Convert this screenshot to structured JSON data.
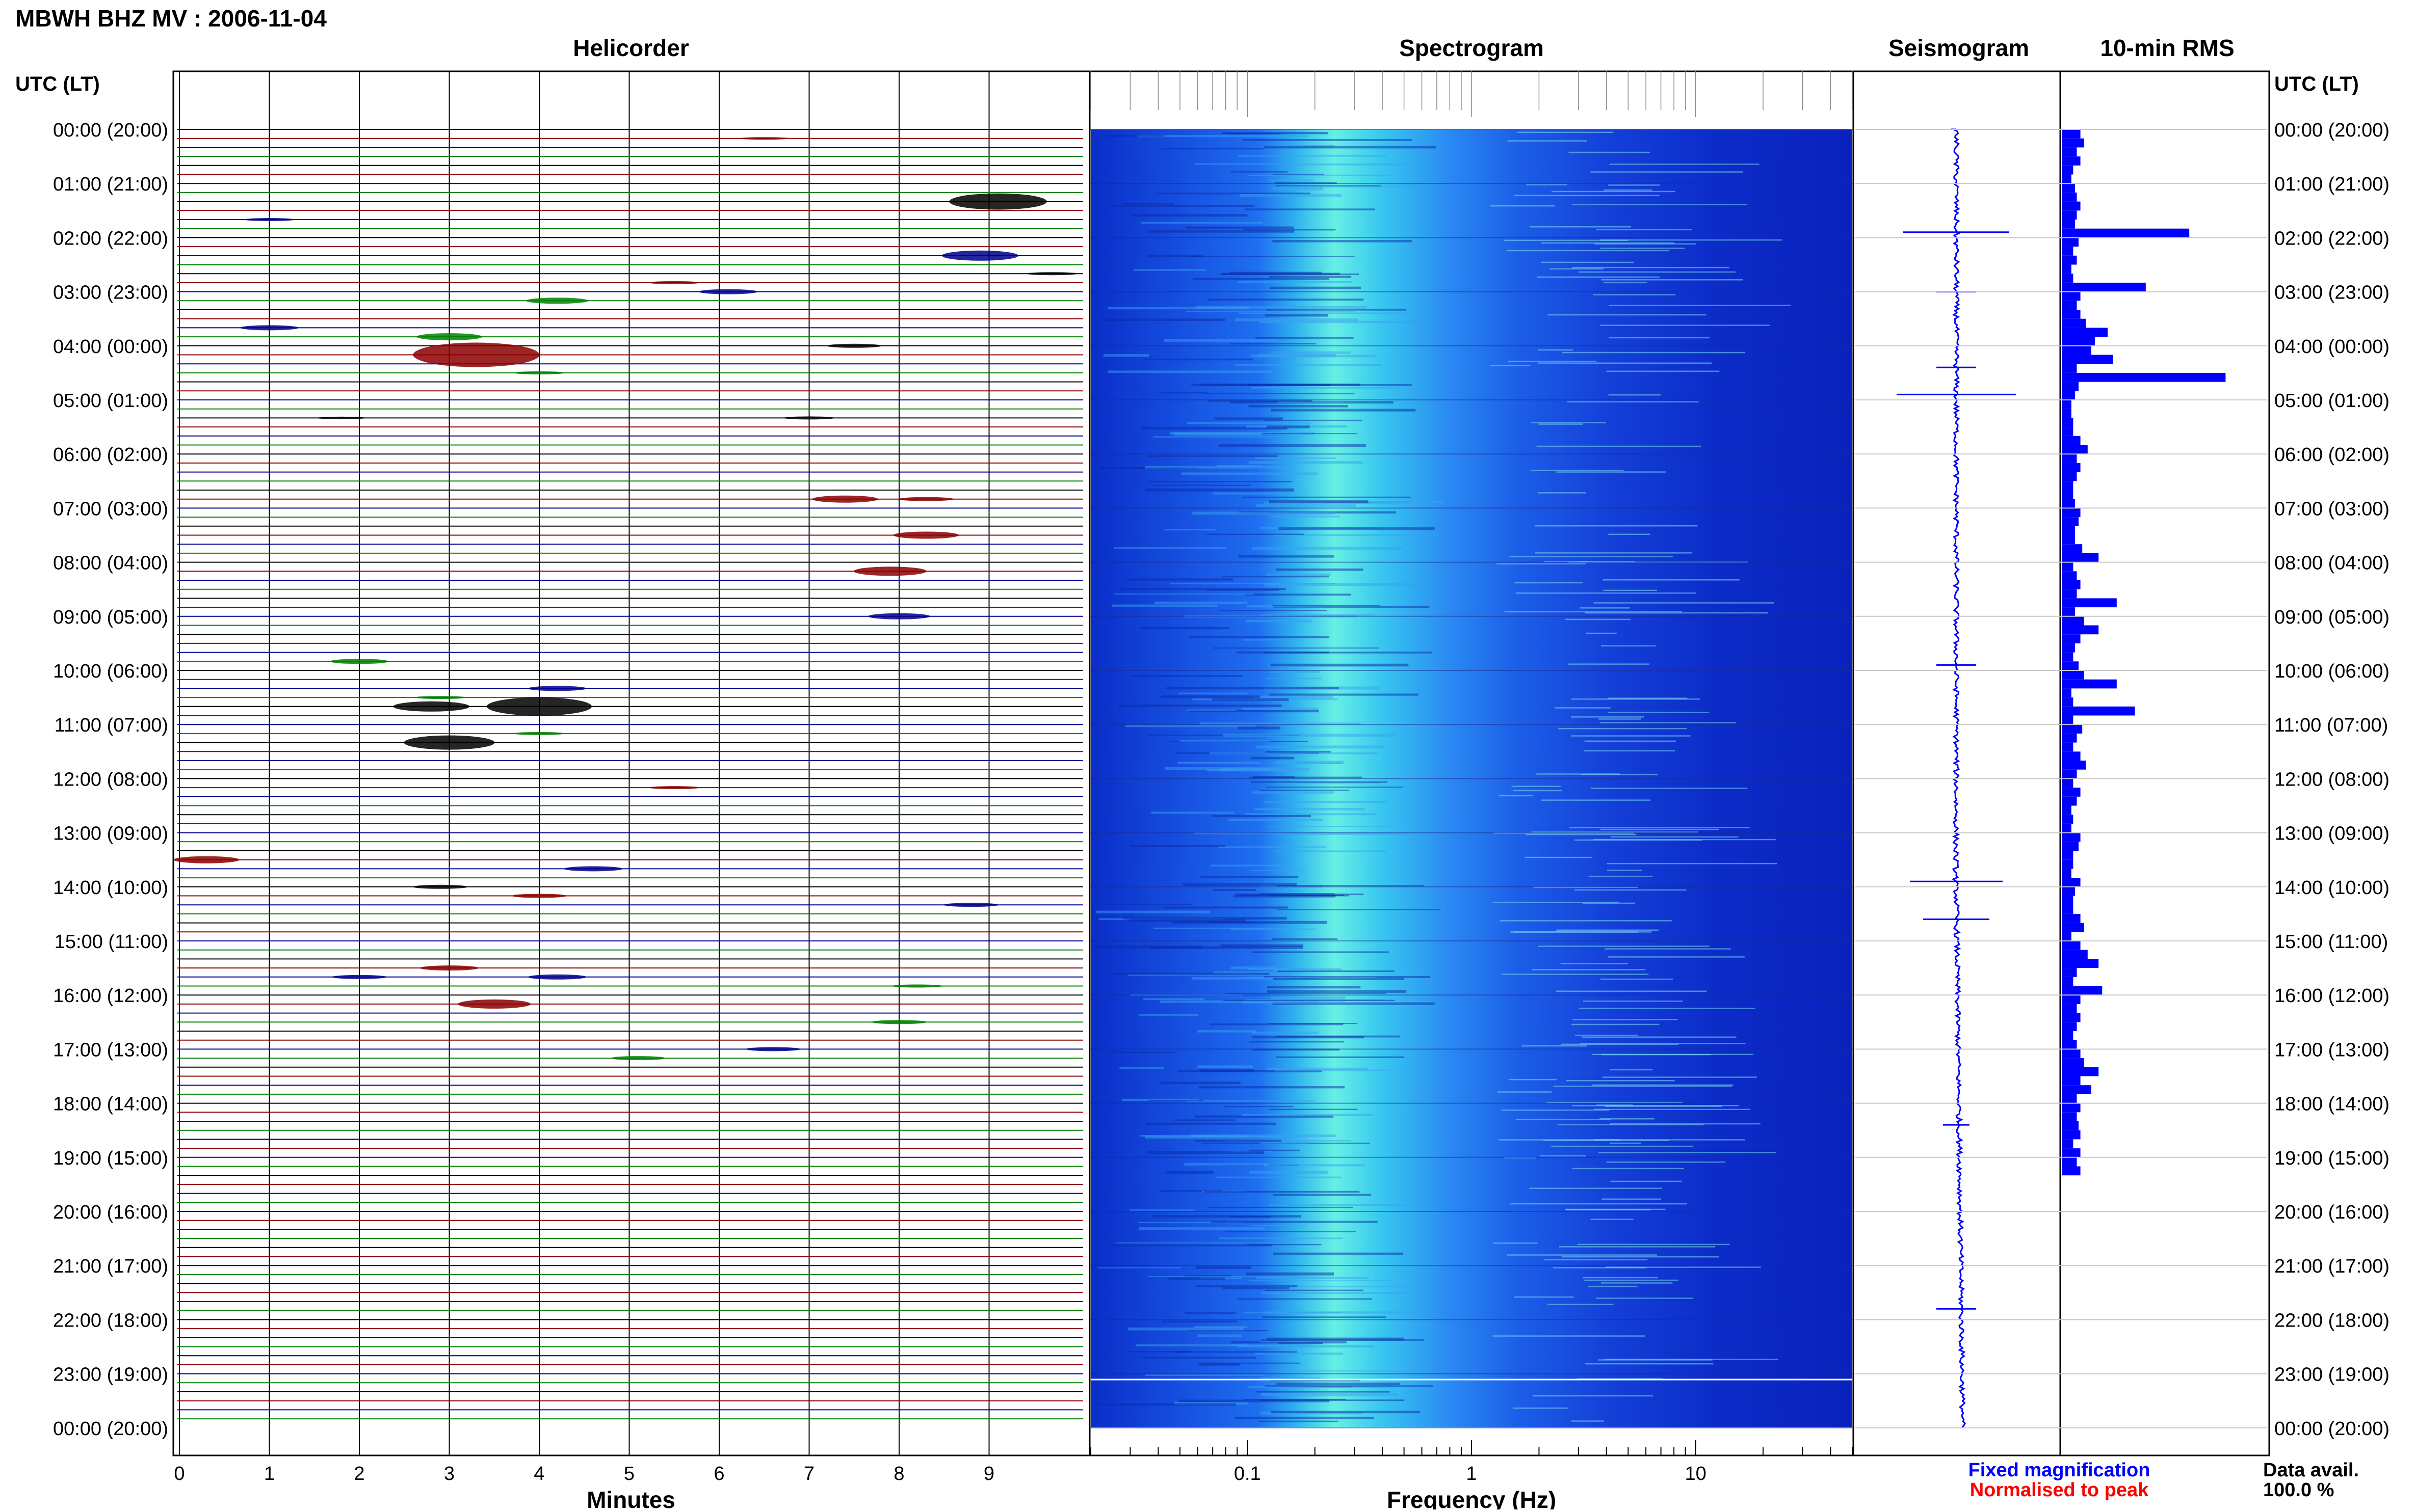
{
  "header": {
    "title": "MBWH BHZ MV : 2006-11-04",
    "utc_label_left": "UTC (LT)",
    "utc_label_right": "UTC (LT)"
  },
  "panels": {
    "helicorder": "Helicorder",
    "spectrogram": "Spectrogram",
    "seismogram": "Seismogram",
    "rms": "10-min RMS"
  },
  "axes": {
    "minutes_label": "Minutes",
    "frequency_label": "Frequency (Hz)",
    "minute_ticks": [
      "0",
      "1",
      "2",
      "3",
      "4",
      "5",
      "6",
      "7",
      "8",
      "9"
    ],
    "freq_ticks": [
      {
        "v": 0.1,
        "t": "0.1"
      },
      {
        "v": 1,
        "t": "1"
      },
      {
        "v": 10,
        "t": "10"
      }
    ],
    "freq_range": [
      0.02,
      50
    ]
  },
  "time_labels": [
    "00:00 (20:00)",
    "01:00 (21:00)",
    "02:00 (22:00)",
    "03:00 (23:00)",
    "04:00 (00:00)",
    "05:00 (01:00)",
    "06:00 (02:00)",
    "07:00 (03:00)",
    "08:00 (04:00)",
    "09:00 (05:00)",
    "10:00 (06:00)",
    "11:00 (07:00)",
    "12:00 (08:00)",
    "13:00 (09:00)",
    "14:00 (10:00)",
    "15:00 (11:00)",
    "16:00 (12:00)",
    "17:00 (13:00)",
    "18:00 (14:00)",
    "19:00 (15:00)",
    "20:00 (16:00)",
    "21:00 (17:00)",
    "22:00 (18:00)",
    "23:00 (19:00)",
    "00:00 (20:00)"
  ],
  "legend": {
    "fixed": "Fixed magnification",
    "normalised": "Normalised to peak",
    "fixed_color": "#0000ff",
    "normalised_color": "#ff0000"
  },
  "data_avail": {
    "label": "Data avail.",
    "value": "100.0 %"
  },
  "colors": {
    "trace": [
      "#000000",
      "#8b0000",
      "#00008b",
      "#008000"
    ],
    "rms": "#0000ff"
  },
  "chart_data": {
    "type": "heatmap",
    "helicorder_events": [
      {
        "row": 1,
        "minute": 6.5,
        "amp": 0.25
      },
      {
        "row": 8,
        "minute": 9.1,
        "amp": 1.6
      },
      {
        "row": 10,
        "minute": 1.0,
        "amp": 0.3
      },
      {
        "row": 14,
        "minute": 8.9,
        "amp": 1.0
      },
      {
        "row": 16,
        "minute": 9.7,
        "amp": 0.3
      },
      {
        "row": 17,
        "minute": 5.5,
        "amp": 0.3
      },
      {
        "row": 18,
        "minute": 6.1,
        "amp": 0.5
      },
      {
        "row": 19,
        "minute": 4.2,
        "amp": 0.6
      },
      {
        "row": 22,
        "minute": 1.0,
        "amp": 0.5
      },
      {
        "row": 23,
        "minute": 3.0,
        "amp": 0.7
      },
      {
        "row": 24,
        "minute": 7.5,
        "amp": 0.4
      },
      {
        "row": 25,
        "minute": 3.3,
        "amp": 2.4
      },
      {
        "row": 27,
        "minute": 4.0,
        "amp": 0.3
      },
      {
        "row": 32,
        "minute": 1.8,
        "amp": 0.25
      },
      {
        "row": 32,
        "minute": 7.0,
        "amp": 0.3
      },
      {
        "row": 41,
        "minute": 7.4,
        "amp": 0.7
      },
      {
        "row": 41,
        "minute": 8.3,
        "amp": 0.4
      },
      {
        "row": 45,
        "minute": 8.3,
        "amp": 0.7
      },
      {
        "row": 49,
        "minute": 7.9,
        "amp": 0.9
      },
      {
        "row": 54,
        "minute": 8.0,
        "amp": 0.6
      },
      {
        "row": 59,
        "minute": 2.0,
        "amp": 0.5
      },
      {
        "row": 62,
        "minute": 4.2,
        "amp": 0.5
      },
      {
        "row": 63,
        "minute": 2.9,
        "amp": 0.3
      },
      {
        "row": 64,
        "minute": 2.8,
        "amp": 1.0
      },
      {
        "row": 64,
        "minute": 4.0,
        "amp": 1.8
      },
      {
        "row": 67,
        "minute": 4.0,
        "amp": 0.3
      },
      {
        "row": 68,
        "minute": 3.0,
        "amp": 1.4
      },
      {
        "row": 73,
        "minute": 5.5,
        "amp": 0.3
      },
      {
        "row": 81,
        "minute": 0.3,
        "amp": 0.7
      },
      {
        "row": 82,
        "minute": 4.6,
        "amp": 0.5
      },
      {
        "row": 84,
        "minute": 2.9,
        "amp": 0.4
      },
      {
        "row": 85,
        "minute": 4.0,
        "amp": 0.4
      },
      {
        "row": 86,
        "minute": 8.8,
        "amp": 0.4
      },
      {
        "row": 93,
        "minute": 3.0,
        "amp": 0.5
      },
      {
        "row": 94,
        "minute": 2.0,
        "amp": 0.4
      },
      {
        "row": 94,
        "minute": 4.2,
        "amp": 0.5
      },
      {
        "row": 95,
        "minute": 8.2,
        "amp": 0.3
      },
      {
        "row": 97,
        "minute": 3.5,
        "amp": 0.9
      },
      {
        "row": 99,
        "minute": 8.0,
        "amp": 0.4
      },
      {
        "row": 102,
        "minute": 6.6,
        "amp": 0.4
      },
      {
        "row": 103,
        "minute": 5.1,
        "amp": 0.4
      }
    ],
    "seismogram_spikes": [
      {
        "hour": 1.9,
        "amp": 0.8
      },
      {
        "hour": 3.0,
        "amp": 0.3
      },
      {
        "hour": 4.4,
        "amp": 0.3
      },
      {
        "hour": 4.9,
        "amp": 0.9
      },
      {
        "hour": 9.9,
        "amp": 0.3
      },
      {
        "hour": 13.9,
        "amp": 0.7
      },
      {
        "hour": 14.6,
        "amp": 0.5
      },
      {
        "hour": 18.4,
        "amp": 0.2
      },
      {
        "hour": 21.8,
        "amp": 0.3
      }
    ],
    "rms_bars": [
      0.1,
      0.12,
      0.08,
      0.1,
      0.06,
      0.05,
      0.07,
      0.08,
      0.1,
      0.08,
      0.07,
      0.7,
      0.09,
      0.06,
      0.08,
      0.05,
      0.06,
      0.46,
      0.1,
      0.08,
      0.1,
      0.13,
      0.25,
      0.18,
      0.16,
      0.28,
      0.08,
      0.9,
      0.09,
      0.07,
      0.05,
      0.05,
      0.06,
      0.06,
      0.1,
      0.14,
      0.08,
      0.1,
      0.08,
      0.06,
      0.06,
      0.07,
      0.1,
      0.09,
      0.07,
      0.07,
      0.11,
      0.2,
      0.06,
      0.08,
      0.1,
      0.08,
      0.3,
      0.07,
      0.12,
      0.2,
      0.1,
      0.07,
      0.06,
      0.09,
      0.12,
      0.3,
      0.05,
      0.06,
      0.4,
      0.06,
      0.11,
      0.08,
      0.06,
      0.1,
      0.13,
      0.08,
      0.06,
      0.1,
      0.08,
      0.05,
      0.06,
      0.05,
      0.1,
      0.09,
      0.06,
      0.06,
      0.05,
      0.1,
      0.07,
      0.06,
      0.06,
      0.1,
      0.12,
      0.05,
      0.1,
      0.14,
      0.2,
      0.08,
      0.06,
      0.22,
      0.1,
      0.08,
      0.1,
      0.08,
      0.06,
      0.08,
      0.1,
      0.12,
      0.2,
      0.1,
      0.16,
      0.08,
      0.1,
      0.08,
      0.09,
      0.1,
      0.06,
      0.1,
      0.08,
      0.1
    ]
  }
}
